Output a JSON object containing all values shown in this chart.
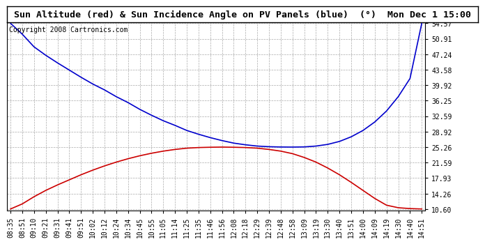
{
  "title": "Sun Altitude (red) & Sun Incidence Angle on PV Panels (blue)  (°)  Mon Dec 1 15:00",
  "copyright": "Copyright 2008 Cartronics.com",
  "background_color": "#ffffff",
  "plot_bg_color": "#ffffff",
  "grid_color": "#aaaaaa",
  "y_ticks": [
    10.6,
    14.26,
    17.93,
    21.59,
    25.26,
    28.92,
    32.59,
    36.25,
    39.92,
    43.58,
    47.24,
    50.91,
    54.57
  ],
  "x_labels": [
    "08:35",
    "08:51",
    "09:10",
    "09:21",
    "09:31",
    "09:41",
    "09:51",
    "10:02",
    "10:12",
    "10:24",
    "10:34",
    "10:45",
    "10:55",
    "11:05",
    "11:14",
    "11:25",
    "11:35",
    "11:46",
    "11:56",
    "12:08",
    "12:18",
    "12:29",
    "12:39",
    "12:48",
    "12:58",
    "13:09",
    "13:19",
    "13:30",
    "13:40",
    "13:51",
    "14:00",
    "14:09",
    "14:19",
    "14:30",
    "14:40",
    "14:51"
  ],
  "blue_data": [
    54.57,
    52.0,
    49.0,
    47.0,
    45.2,
    43.5,
    41.8,
    40.2,
    38.8,
    37.2,
    35.8,
    34.2,
    32.8,
    31.5,
    30.4,
    29.2,
    28.3,
    27.5,
    26.8,
    26.2,
    25.8,
    25.5,
    25.35,
    25.28,
    25.26,
    25.3,
    25.5,
    25.9,
    26.6,
    27.7,
    29.2,
    31.2,
    33.8,
    37.2,
    41.5,
    54.57
  ],
  "red_data": [
    10.6,
    11.8,
    13.5,
    15.0,
    16.3,
    17.5,
    18.7,
    19.8,
    20.8,
    21.7,
    22.5,
    23.2,
    23.8,
    24.3,
    24.7,
    25.0,
    25.15,
    25.22,
    25.26,
    25.22,
    25.15,
    25.0,
    24.7,
    24.3,
    23.7,
    22.8,
    21.7,
    20.3,
    18.7,
    16.9,
    15.0,
    13.1,
    11.5,
    10.9,
    10.7,
    10.6
  ],
  "blue_color": "#0000cc",
  "red_color": "#cc0000",
  "title_fontsize": 9.5,
  "tick_fontsize": 7,
  "copyright_fontsize": 7
}
